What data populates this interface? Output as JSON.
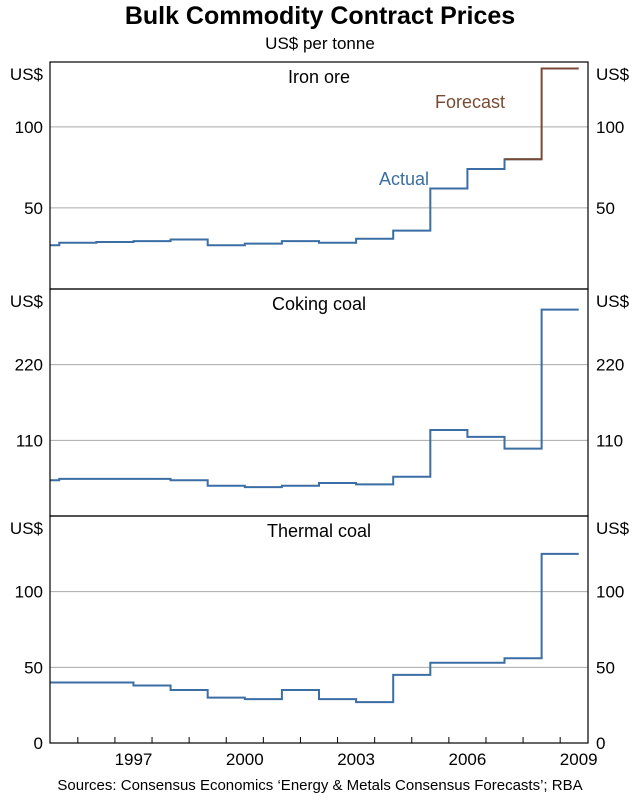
{
  "title": "Bulk Commodity Contract Prices",
  "subtitle": "US$ per tonne",
  "source": "Sources: Consensus Economics ‘Energy & Metals Consensus Forecasts’; RBA",
  "colors": {
    "actual": "#3a6ea5",
    "forecast": "#7a4b34",
    "grid": "#aaaaaa",
    "frame": "#000000"
  },
  "chart_data": [
    {
      "type": "line",
      "step": true,
      "title": "Iron ore",
      "unit_label": "US$",
      "ylim": [
        0,
        140
      ],
      "yticks": [
        50,
        100
      ],
      "xlim": [
        1995.25,
        2009.75
      ],
      "xticks": [
        "1997",
        "2000",
        "2003",
        "2006",
        "2009"
      ],
      "annotations": [
        "Actual",
        "Forecast"
      ],
      "series": [
        {
          "name": "Actual",
          "x": [
            1995.25,
            1995.5,
            1996.5,
            1997.5,
            1998.5,
            1999.5,
            2000.5,
            2001.5,
            2002.5,
            2003.5,
            2004.5,
            2005.5,
            2006.5,
            2007.5
          ],
          "values": [
            27,
            28.5,
            29,
            29.5,
            30.5,
            27,
            28,
            29.5,
            28.5,
            31,
            36,
            62,
            74,
            80
          ]
        },
        {
          "name": "Forecast",
          "x": [
            2008.5,
            2009.5
          ],
          "values": [
            136,
            136
          ]
        }
      ]
    },
    {
      "type": "line",
      "step": true,
      "title": "Coking coal",
      "unit_label": "US$",
      "ylim": [
        0,
        330
      ],
      "yticks": [
        110,
        220
      ],
      "xlim": [
        1995.25,
        2009.75
      ],
      "xticks": [
        "1997",
        "2000",
        "2003",
        "2006",
        "2009"
      ],
      "series": [
        {
          "name": "Actual",
          "x": [
            1995.25,
            1995.5,
            1996.5,
            1997.5,
            1998.5,
            1999.5,
            2000.5,
            2001.5,
            2002.5,
            2003.5,
            2004.5,
            2005.5,
            2006.5,
            2007.5,
            2008.5,
            2009.5
          ],
          "values": [
            52,
            54,
            54,
            54,
            52,
            44,
            42,
            44,
            48,
            46,
            57,
            125,
            115,
            98,
            300,
            300
          ]
        }
      ]
    },
    {
      "type": "line",
      "step": true,
      "title": "Thermal coal",
      "unit_label": "US$",
      "ylim": [
        0,
        150
      ],
      "yticks": [
        0,
        50,
        100
      ],
      "xlim": [
        1995.25,
        2009.75
      ],
      "xticks": [
        "1997",
        "2000",
        "2003",
        "2006",
        "2009"
      ],
      "series": [
        {
          "name": "Actual",
          "x": [
            1995.25,
            1996.5,
            1997.5,
            1998.5,
            1999.5,
            2000.5,
            2001.5,
            2002.5,
            2003.5,
            2004.5,
            2005.5,
            2006.5,
            2007.5,
            2008.5,
            2009.5
          ],
          "values": [
            40,
            40,
            38,
            35,
            30,
            29,
            35,
            29,
            27,
            45,
            53,
            53,
            56,
            125,
            125
          ]
        }
      ]
    }
  ]
}
